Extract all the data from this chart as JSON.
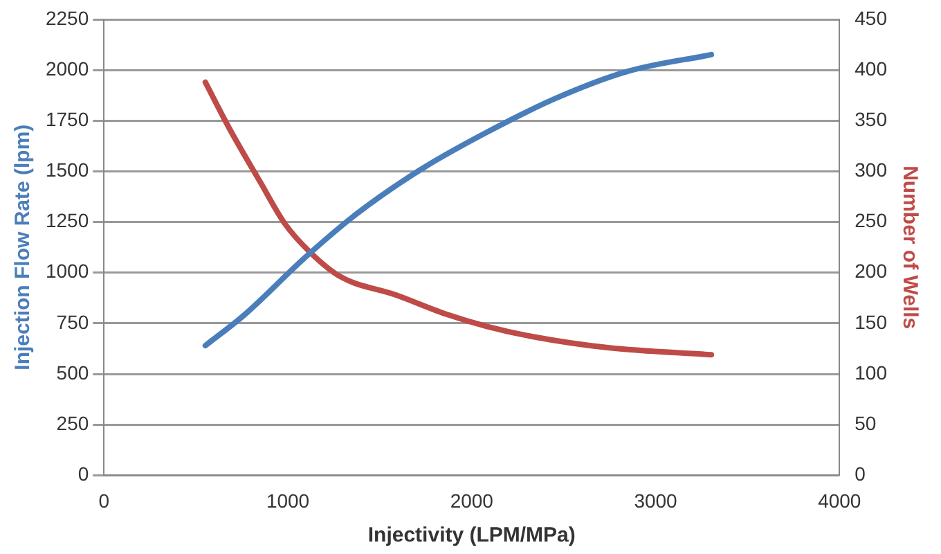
{
  "chart_data": {
    "type": "line",
    "xlabel": "Injectivity (LPM/MPa)",
    "ylabel": "Injection Flow Rate (lpm)",
    "y2label": "Number of Wells",
    "xlim": [
      0,
      4000
    ],
    "xticks": [
      0,
      1000,
      2000,
      3000,
      4000
    ],
    "ylim": [
      0,
      2250
    ],
    "yticks": [
      0,
      250,
      500,
      750,
      1000,
      1250,
      1500,
      1750,
      2000,
      2250
    ],
    "y2lim": [
      0,
      450
    ],
    "y2ticks": [
      0,
      50,
      100,
      150,
      200,
      250,
      300,
      350,
      400,
      450
    ],
    "grid": "y",
    "legend": false,
    "marker": "none",
    "line_style": "solid",
    "series": [
      {
        "color": "#4a7ebb",
        "x": [
          551,
          765,
          1095,
          1369,
          1726,
          2082,
          2466,
          2850,
          3303
        ],
        "values": [
          640,
          793,
          1076,
          1287,
          1511,
          1693,
          1864,
          1994,
          2076
        ]
      },
      {
        "color": "#be4b48",
        "axis": "y2",
        "x": [
          551,
          683,
          848,
          985,
          1122,
          1287,
          1588,
          1862,
          2082,
          2329,
          2741,
          3303
        ],
        "values": [
          388,
          342,
          290,
          248,
          220,
          196,
          178,
          159,
          147,
          137,
          126,
          119
        ]
      }
    ]
  }
}
